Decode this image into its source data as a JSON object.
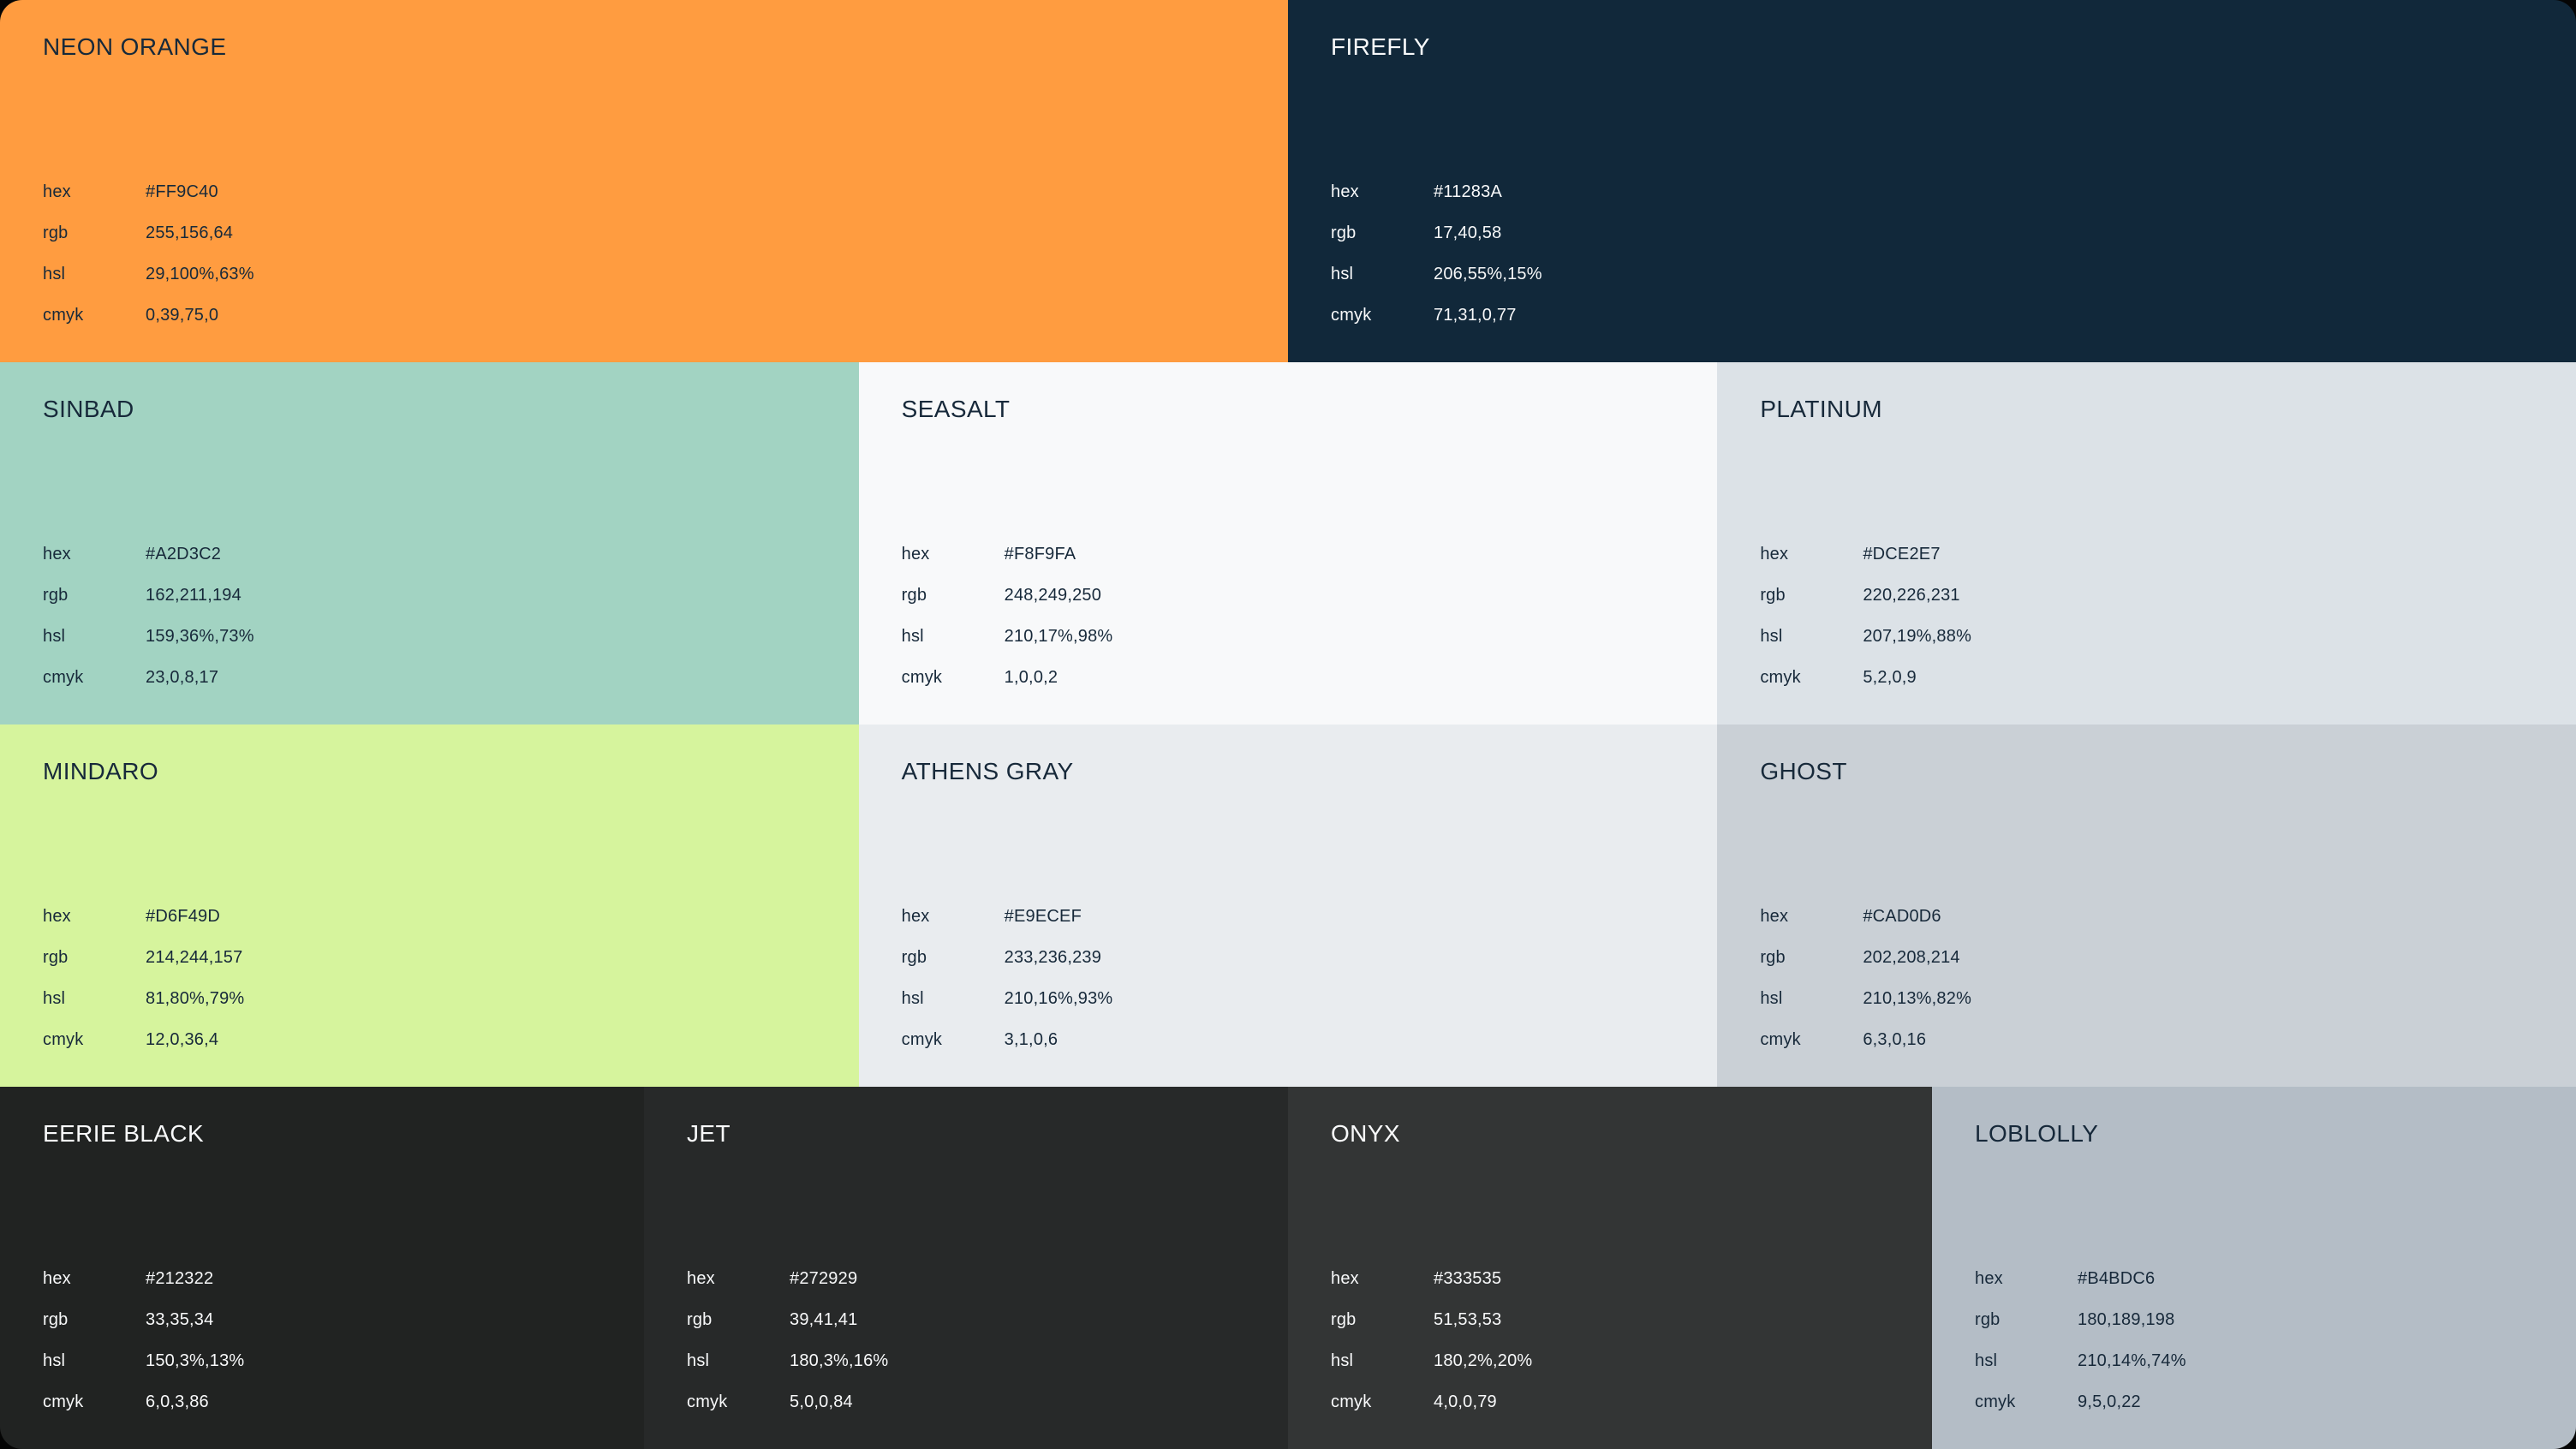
{
  "page": {
    "background": "#050505"
  },
  "labels": {
    "hex": "hex",
    "rgb": "rgb",
    "hsl": "hsl",
    "cmyk": "cmyk"
  },
  "palette": [
    {
      "name": "NEON ORANGE",
      "hex": "#FF9C40",
      "rgb": "255,156,64",
      "hsl": "29,100%,63%",
      "cmyk": "0,39,75,0",
      "text_color": "#17293A"
    },
    {
      "name": "FIREFLY",
      "hex": "#11283A",
      "rgb": "17,40,58",
      "hsl": "206,55%,15%",
      "cmyk": "71,31,0,77",
      "text_color": "#F8F9FA"
    },
    {
      "name": "SINBAD",
      "hex": "#A2D3C2",
      "rgb": "162,211,194",
      "hsl": "159,36%,73%",
      "cmyk": "23,0,8,17",
      "text_color": "#17293A"
    },
    {
      "name": "SEASALT",
      "hex": "#F8F9FA",
      "rgb": "248,249,250",
      "hsl": "210,17%,98%",
      "cmyk": "1,0,0,2",
      "text_color": "#17293A"
    },
    {
      "name": "PLATINUM",
      "hex": "#DCE2E7",
      "rgb": "220,226,231",
      "hsl": "207,19%,88%",
      "cmyk": "5,2,0,9",
      "text_color": "#17293A"
    },
    {
      "name": "MINDARO",
      "hex": "#D6F49D",
      "rgb": "214,244,157",
      "hsl": "81,80%,79%",
      "cmyk": "12,0,36,4",
      "text_color": "#17293A"
    },
    {
      "name": "ATHENS GRAY",
      "hex": "#E9ECEF",
      "rgb": "233,236,239",
      "hsl": "210,16%,93%",
      "cmyk": "3,1,0,6",
      "text_color": "#17293A"
    },
    {
      "name": "GHOST",
      "hex": "#CAD0D6",
      "rgb": "202,208,214",
      "hsl": "210,13%,82%",
      "cmyk": "6,3,0,16",
      "text_color": "#17293A"
    },
    {
      "name": "EERIE BLACK",
      "hex": "#212322",
      "rgb": "33,35,34",
      "hsl": "150,3%,13%",
      "cmyk": "6,0,3,86",
      "text_color": "#F8F9FA"
    },
    {
      "name": "JET",
      "hex": "#272929",
      "rgb": "39,41,41",
      "hsl": "180,3%,16%",
      "cmyk": "5,0,0,84",
      "text_color": "#F8F9FA"
    },
    {
      "name": "ONYX",
      "hex": "#333535",
      "rgb": "51,53,53",
      "hsl": "180,2%,20%",
      "cmyk": "4,0,0,79",
      "text_color": "#F8F9FA"
    },
    {
      "name": "LOBLOLLY",
      "hex": "#B4BDC6",
      "rgb": "180,189,198",
      "hsl": "210,14%,74%",
      "cmyk": "9,5,0,22",
      "text_color": "#17293A"
    }
  ]
}
